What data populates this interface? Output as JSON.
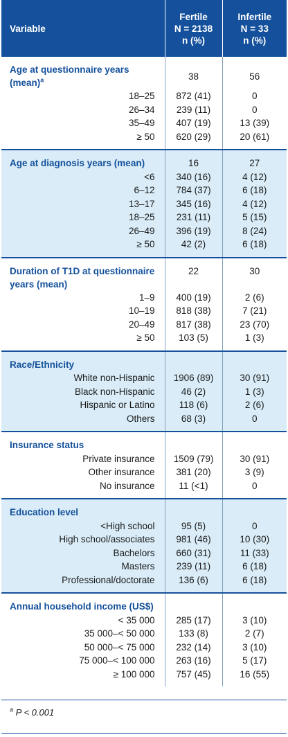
{
  "header": {
    "variable": "Variable",
    "fertile": [
      "Fertile",
      "N = 2138",
      "n (%)"
    ],
    "infertile": [
      "Infertile",
      "N = 33",
      "n (%)"
    ]
  },
  "sections": [
    {
      "title": "Age at questionnaire years (mean)",
      "title_sup": "a",
      "fertile": "38",
      "infertile": "56",
      "rows": [
        {
          "label": "18–25",
          "fertile": "872 (41)",
          "infertile": "0"
        },
        {
          "label": "26–34",
          "fertile": "239 (11)",
          "infertile": "0"
        },
        {
          "label": "35–49",
          "fertile": "407 (19)",
          "infertile": "13 (39)"
        },
        {
          "label": "≥ 50",
          "fertile": "620 (29)",
          "infertile": "20 (61)"
        }
      ]
    },
    {
      "title": "Age at diagnosis years (mean)",
      "fertile": "16",
      "infertile": "27",
      "rows": [
        {
          "label": "<6",
          "fertile": "340 (16)",
          "infertile": "4 (12)"
        },
        {
          "label": "6–12",
          "fertile": "784 (37)",
          "infertile": "6 (18)"
        },
        {
          "label": "13–17",
          "fertile": "345 (16)",
          "infertile": "4 (12)"
        },
        {
          "label": "18–25",
          "fertile": "231 (11)",
          "infertile": "5 (15)"
        },
        {
          "label": "26–49",
          "fertile": "396 (19)",
          "infertile": "8 (24)"
        },
        {
          "label": "≥ 50",
          "fertile": "42 (2)",
          "infertile": "6 (18)"
        }
      ]
    },
    {
      "title": "Duration of T1D at questionnaire years (mean)",
      "fertile": "22",
      "infertile": "30",
      "rows": [
        {
          "label": "1–9",
          "fertile": "400 (19)",
          "infertile": "2 (6)"
        },
        {
          "label": "10–19",
          "fertile": "818 (38)",
          "infertile": "7 (21)"
        },
        {
          "label": "20–49",
          "fertile": "817 (38)",
          "infertile": "23 (70)"
        },
        {
          "label": "≥ 50",
          "fertile": "103 (5)",
          "infertile": "1 (3)"
        }
      ]
    },
    {
      "title": "Race/Ethnicity",
      "fertile": "",
      "infertile": "",
      "rows": [
        {
          "label": "White non-Hispanic",
          "fertile": "1906 (89)",
          "infertile": "30 (91)"
        },
        {
          "label": "Black non-Hispanic",
          "fertile": "46 (2)",
          "infertile": "1 (3)"
        },
        {
          "label": "Hispanic or Latino",
          "fertile": "118 (6)",
          "infertile": "2 (6)"
        },
        {
          "label": "Others",
          "fertile": "68 (3)",
          "infertile": "0"
        }
      ]
    },
    {
      "title": "Insurance status",
      "fertile": "",
      "infertile": "",
      "rows": [
        {
          "label": "Private insurance",
          "fertile": "1509 (79)",
          "infertile": "30 (91)"
        },
        {
          "label": "Other insurance",
          "fertile": "381 (20)",
          "infertile": "3 (9)"
        },
        {
          "label": "No insurance",
          "fertile": "11 (<1)",
          "infertile": "0"
        }
      ]
    },
    {
      "title": "Education level",
      "fertile": "",
      "infertile": "",
      "rows": [
        {
          "label": "<High school",
          "fertile": "95 (5)",
          "infertile": "0"
        },
        {
          "label": "High school/associates",
          "fertile": "981 (46)",
          "infertile": "10 (30)"
        },
        {
          "label": "Bachelors",
          "fertile": "660 (31)",
          "infertile": "11 (33)"
        },
        {
          "label": "Masters",
          "fertile": "239 (11)",
          "infertile": "6 (18)"
        },
        {
          "label": "Professional/doctorate",
          "fertile": "136 (6)",
          "infertile": "6 (18)"
        }
      ]
    },
    {
      "title": "Annual household income (US$)",
      "fertile": "",
      "infertile": "",
      "rows": [
        {
          "label": "< 35 000",
          "fertile": "285 (17)",
          "infertile": "3 (10)"
        },
        {
          "label": "35 000–< 50 000",
          "fertile": "133 (8)",
          "infertile": "2 (7)"
        },
        {
          "label": "50 000–< 75 000",
          "fertile": "232 (14)",
          "infertile": "3 (10)"
        },
        {
          "label": "75 000–< 100 000",
          "fertile": "263 (16)",
          "infertile": "5 (17)"
        },
        {
          "label": "≥ 100 000",
          "fertile": "757 (45)",
          "infertile": "16 (55)"
        }
      ]
    }
  ],
  "footnote": {
    "sup": "a",
    "text": "P < 0.001"
  },
  "colors": {
    "header_bg": "#14509b",
    "band_bg": "#d9ecf7",
    "accent": "#14509b"
  }
}
